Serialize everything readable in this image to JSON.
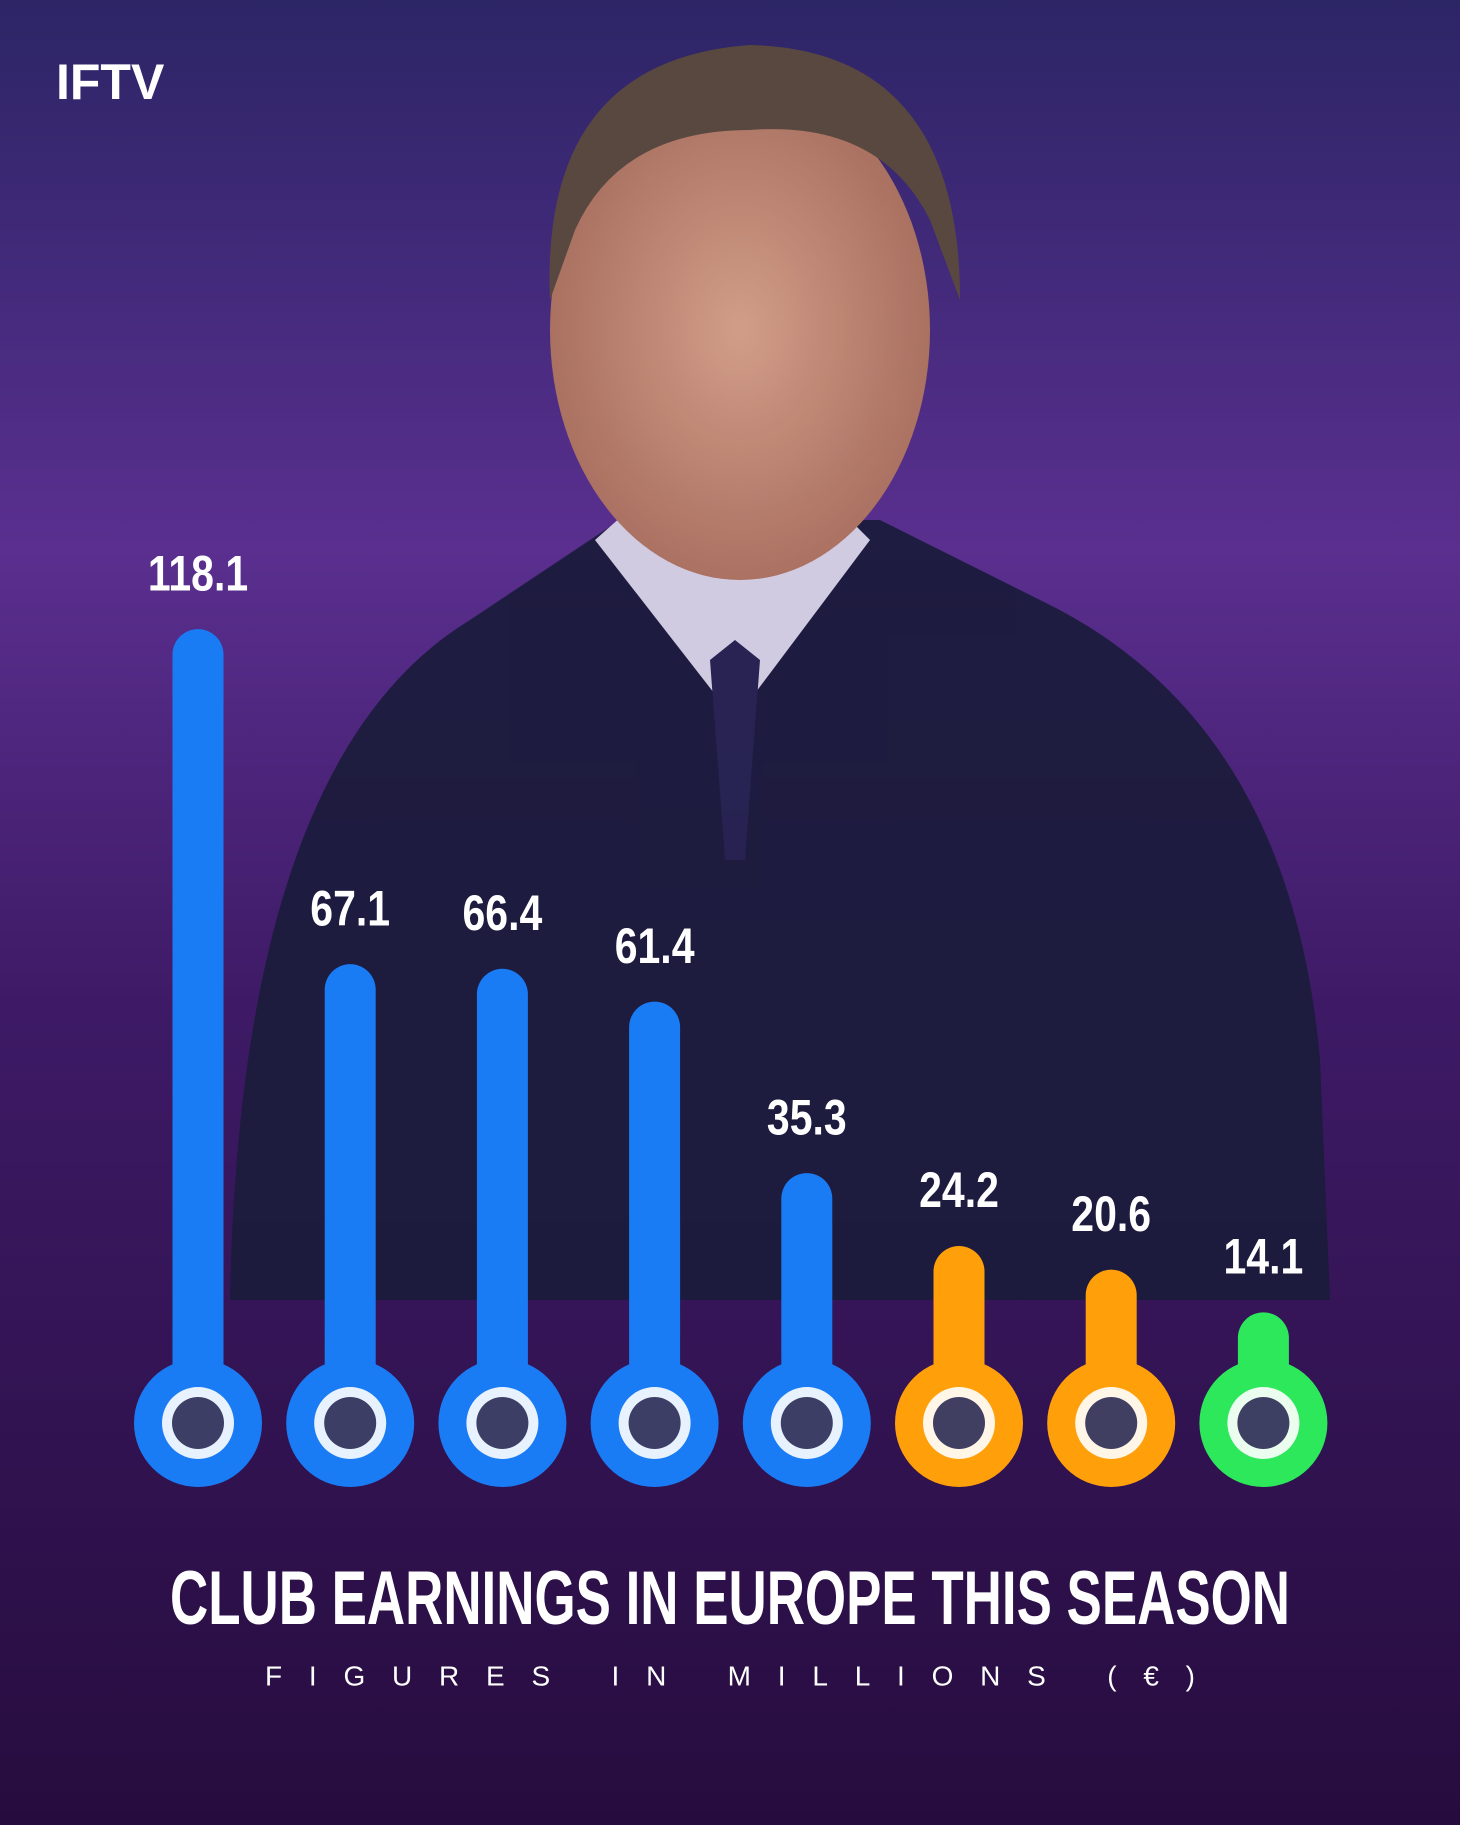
{
  "brand": "IFTV",
  "chart_data": {
    "type": "bar",
    "title": "CLUB EARNINGS IN EUROPE THIS SEASON",
    "subtitle": "FIGURES IN MILLIONS (€)",
    "values": [
      118.1,
      67.1,
      66.4,
      61.4,
      35.3,
      24.2,
      20.6,
      14.1
    ],
    "colors": [
      "#1a7cf5",
      "#1a7cf5",
      "#1a7cf5",
      "#1a7cf5",
      "#1a7cf5",
      "#ff9f0a",
      "#ff9f0a",
      "#2ee85c"
    ]
  }
}
